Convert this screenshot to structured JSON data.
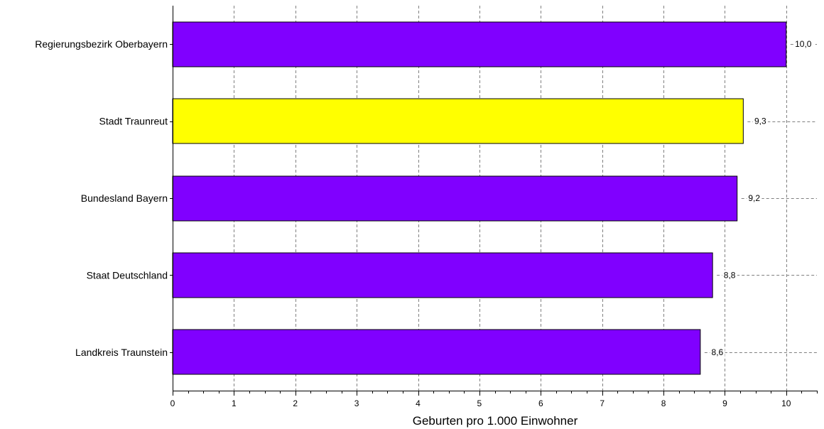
{
  "chart_data": {
    "type": "bar",
    "orientation": "horizontal",
    "categories": [
      "Regierungsbezirk Oberbayern",
      "Stadt Traunreut",
      "Bundesland Bayern",
      "Staat Deutschland",
      "Landkreis Traunstein"
    ],
    "values": [
      10.0,
      9.3,
      9.2,
      8.8,
      8.6
    ],
    "value_labels": [
      "10,0",
      "9,3",
      "9,2",
      "8,8",
      "8,6"
    ],
    "bar_colors": [
      "#8000ff",
      "#ffff00",
      "#8000ff",
      "#8000ff",
      "#8000ff"
    ],
    "xlabel": "Geburten pro 1.000 Einwohner",
    "ylabel": "",
    "xlim": [
      0,
      10.5
    ],
    "xticks": [
      0,
      1,
      2,
      3,
      4,
      5,
      6,
      7,
      8,
      9,
      10
    ],
    "grid": "vertical dashed",
    "legend": "none"
  }
}
